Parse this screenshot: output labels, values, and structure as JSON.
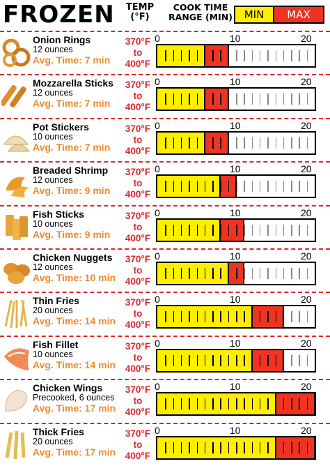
{
  "header": {
    "title": "FROZEN",
    "temp_label_1": "TEMP",
    "temp_label_2": "(°F)",
    "range_label_1": "COOK TIME",
    "range_label_2": "RANGE (MIN)",
    "legend_min": "MIN",
    "legend_max": "MAX"
  },
  "colors": {
    "min": "#ffee00",
    "max": "#ee3322",
    "accent": "#d8262c",
    "avg_text": "#ee8a2e"
  },
  "scale": {
    "min": 0,
    "mid": 10,
    "max": 20,
    "labels": [
      "0",
      "10",
      "20"
    ]
  },
  "items": [
    {
      "name": "Onion Rings",
      "amount": "12 ounces",
      "avg": "Avg. Time: 7 min",
      "temp1": "370°F",
      "temp_to": "to",
      "temp2": "400°F",
      "min": 6,
      "max": 9,
      "icon": "onion-rings-icon"
    },
    {
      "name": "Mozzarella Sticks",
      "amount": "12 ounces",
      "avg": "Avg. Time: 7 min",
      "temp1": "370°F",
      "temp_to": "to",
      "temp2": "400°F",
      "min": 6,
      "max": 9,
      "icon": "mozzarella-sticks-icon"
    },
    {
      "name": "Pot Stickers",
      "amount": "10 ounces",
      "avg": "Avg.  Time: 7 min",
      "temp1": "370°F",
      "temp_to": "to",
      "temp2": "400°F",
      "min": 6,
      "max": 9,
      "icon": "pot-stickers-icon"
    },
    {
      "name": "Breaded Shrimp",
      "amount": "12 ounces",
      "avg": "Avg. Time: 9 min",
      "temp1": "370°F",
      "temp_to": "to",
      "temp2": "400°F",
      "min": 8,
      "max": 10,
      "icon": "breaded-shrimp-icon"
    },
    {
      "name": "Fish Sticks",
      "amount": "10 ounces",
      "avg": "Avg.  Time: 9 min",
      "temp1": "370°F",
      "temp_to": "to",
      "temp2": "400°F",
      "min": 8,
      "max": 11,
      "icon": "fish-sticks-icon"
    },
    {
      "name": "Chicken Nuggets",
      "amount": "12 ounces",
      "avg": "Avg. Time: 10 min",
      "temp1": "370°F",
      "temp_to": "to",
      "temp2": "400°F",
      "min": 9,
      "max": 11,
      "icon": "chicken-nuggets-icon"
    },
    {
      "name": "Thin Fries",
      "amount": "20 ounces",
      "avg": "Avg. Time: 14 min",
      "temp1": "370°F",
      "temp_to": "to",
      "temp2": "400°F",
      "min": 12,
      "max": 16,
      "icon": "thin-fries-icon"
    },
    {
      "name": "Fish Fillet",
      "amount": "10 ounces",
      "avg": "Avg. Time: 14 min",
      "temp1": "370°F",
      "temp_to": "to",
      "temp2": "400°F",
      "min": 12,
      "max": 16,
      "icon": "fish-fillet-icon"
    },
    {
      "name": "Chicken Wings",
      "amount": "Precooked, 6 ounces",
      "avg": "Avg. Time: 17 min",
      "temp1": "370°F",
      "temp_to": "to",
      "temp2": "400°F",
      "min": 15,
      "max": 20,
      "icon": "chicken-wings-icon"
    },
    {
      "name": "Thick Fries",
      "amount": "20 ounces",
      "avg": "Avg. Time: 17 min",
      "temp1": "370°F",
      "temp_to": "to",
      "temp2": "400°F",
      "min": 15,
      "max": 20,
      "icon": "thick-fries-icon"
    }
  ]
}
